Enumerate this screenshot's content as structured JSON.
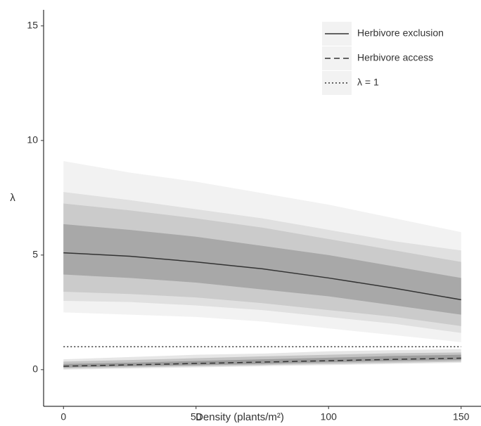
{
  "chart_data": {
    "type": "line",
    "x_label": "Density (plants/m²)",
    "y_label": "λ",
    "x": [
      0,
      25,
      50,
      75,
      100,
      125,
      150
    ],
    "xlim": [
      -7.5,
      157.5
    ],
    "xticks": [
      0,
      50,
      100,
      150
    ],
    "ylim": [
      -1.6,
      15.7
    ],
    "yticks": [
      0,
      5,
      10,
      15
    ],
    "grid": false,
    "legend_position": "top-right",
    "bands": [
      {
        "color": "#f2f2f2",
        "lower": [
          2.5,
          2.4,
          2.3,
          2.1,
          1.8,
          1.5,
          1.2
        ],
        "upper": [
          9.1,
          8.6,
          8.2,
          7.7,
          7.2,
          6.6,
          6.0
        ]
      },
      {
        "color": "#e0e0e0",
        "lower": [
          3.0,
          2.95,
          2.8,
          2.6,
          2.3,
          2.0,
          1.6
        ],
        "upper": [
          7.75,
          7.4,
          7.0,
          6.6,
          6.1,
          5.6,
          5.2
        ]
      },
      {
        "color": "#cbcbcb",
        "lower": [
          3.4,
          3.3,
          3.15,
          2.9,
          2.6,
          2.3,
          1.9
        ],
        "upper": [
          7.25,
          6.95,
          6.6,
          6.2,
          5.7,
          5.2,
          4.7
        ]
      },
      {
        "color": "#a8a8a8",
        "lower": [
          4.15,
          4.0,
          3.8,
          3.5,
          3.2,
          2.8,
          2.4
        ],
        "upper": [
          6.35,
          6.1,
          5.8,
          5.4,
          5.0,
          4.5,
          4.0
        ]
      },
      {
        "color": "#e6e6e6",
        "lower": [
          0.0,
          0.05,
          0.1,
          0.15,
          0.2,
          0.25,
          0.3
        ],
        "upper": [
          0.45,
          0.55,
          0.65,
          0.7,
          0.8,
          0.85,
          0.9
        ]
      },
      {
        "color": "#c4c4c4",
        "lower": [
          0.05,
          0.1,
          0.15,
          0.2,
          0.25,
          0.3,
          0.35
        ],
        "upper": [
          0.35,
          0.42,
          0.5,
          0.58,
          0.65,
          0.72,
          0.75
        ]
      },
      {
        "color": "#9e9e9e",
        "lower": [
          0.1,
          0.15,
          0.2,
          0.25,
          0.32,
          0.38,
          0.42
        ],
        "upper": [
          0.25,
          0.3,
          0.38,
          0.45,
          0.52,
          0.6,
          0.65
        ]
      }
    ],
    "series": [
      {
        "name": "Herbivore exclusion",
        "color": "#333333",
        "dash": "solid",
        "values": [
          5.1,
          4.95,
          4.7,
          4.4,
          4.0,
          3.55,
          3.05
        ]
      },
      {
        "name": "Herbivore access",
        "color": "#333333",
        "dash": "dashed",
        "values": [
          0.15,
          0.21,
          0.27,
          0.33,
          0.39,
          0.45,
          0.5
        ]
      },
      {
        "name": "λ = 1",
        "color": "#333333",
        "dash": "dotted",
        "values": [
          1,
          1,
          1,
          1,
          1,
          1,
          1
        ]
      }
    ]
  }
}
